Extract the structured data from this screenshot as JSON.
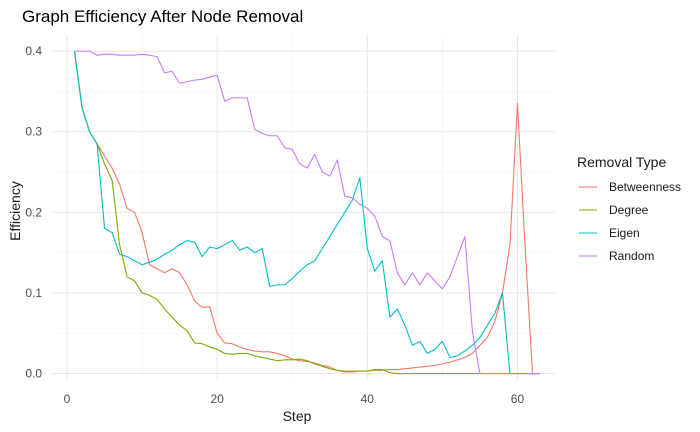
{
  "chart_data": {
    "type": "line",
    "title": "Graph Efficiency After Node Removal",
    "xlabel": "Step",
    "ylabel": "Efficiency",
    "xlim": [
      -2,
      65
    ],
    "ylim": [
      -0.008,
      0.42
    ],
    "x_ticks": [
      0,
      20,
      40,
      60
    ],
    "y_ticks": [
      0.0,
      0.1,
      0.2,
      0.3,
      0.4
    ],
    "y_tick_labels": [
      "0.0",
      "0.1",
      "0.2",
      "0.3",
      "0.4"
    ],
    "grid": true,
    "legend": {
      "title": "Removal Type",
      "position": "right"
    },
    "series": [
      {
        "name": "Betweenness",
        "color": "#F8766D",
        "x": [
          1,
          2,
          3,
          4,
          5,
          6,
          7,
          8,
          9,
          10,
          11,
          12,
          13,
          14,
          15,
          16,
          17,
          18,
          19,
          20,
          21,
          22,
          23,
          24,
          25,
          26,
          27,
          28,
          29,
          30,
          31,
          32,
          33,
          34,
          35,
          36,
          37,
          38,
          39,
          40,
          41,
          42,
          43,
          44,
          45,
          46,
          47,
          48,
          49,
          50,
          51,
          52,
          53,
          54,
          55,
          56,
          57,
          58,
          59,
          60,
          61,
          62,
          63
        ],
        "y": [
          0.4,
          0.33,
          0.3,
          0.285,
          0.27,
          0.255,
          0.235,
          0.205,
          0.2,
          0.175,
          0.135,
          0.13,
          0.125,
          0.13,
          0.125,
          0.11,
          0.09,
          0.082,
          0.083,
          0.05,
          0.038,
          0.037,
          0.033,
          0.03,
          0.028,
          0.027,
          0.027,
          0.025,
          0.022,
          0.018,
          0.016,
          0.015,
          0.013,
          0.01,
          0.008,
          0.004,
          0.002,
          0.002,
          0.003,
          0.003,
          0.004,
          0.004,
          0.005,
          0.005,
          0.006,
          0.007,
          0.008,
          0.009,
          0.01,
          0.012,
          0.014,
          0.017,
          0.02,
          0.025,
          0.035,
          0.045,
          0.065,
          0.1,
          0.16,
          0.335,
          0.16,
          0.0,
          0.0
        ]
      },
      {
        "name": "Degree",
        "color": "#7CAE00",
        "x": [
          1,
          2,
          3,
          4,
          5,
          6,
          7,
          8,
          9,
          10,
          11,
          12,
          13,
          14,
          15,
          16,
          17,
          18,
          19,
          20,
          21,
          22,
          23,
          24,
          25,
          26,
          27,
          28,
          29,
          30,
          31,
          32,
          33,
          34,
          35,
          36,
          37,
          38,
          39,
          40,
          41,
          42,
          43,
          44,
          45,
          46,
          47,
          48,
          49,
          50,
          51,
          52,
          53,
          54,
          55,
          56,
          57,
          58,
          59,
          60,
          61,
          62,
          63
        ],
        "y": [
          0.4,
          0.33,
          0.3,
          0.285,
          0.26,
          0.24,
          0.16,
          0.12,
          0.115,
          0.1,
          0.097,
          0.092,
          0.08,
          0.07,
          0.06,
          0.053,
          0.038,
          0.037,
          0.033,
          0.03,
          0.025,
          0.024,
          0.025,
          0.025,
          0.022,
          0.02,
          0.018,
          0.016,
          0.017,
          0.017,
          0.018,
          0.016,
          0.012,
          0.009,
          0.006,
          0.004,
          0.003,
          0.003,
          0.003,
          0.003,
          0.005,
          0.005,
          0.001,
          0.0,
          0.0,
          0.0,
          0.0,
          0.0,
          0.0,
          0.0,
          0.0,
          0.0,
          0.0,
          0.0,
          0.0,
          0.0,
          0.0,
          0.0,
          0.0,
          0.0,
          0.0,
          0.0,
          0.0
        ]
      },
      {
        "name": "Eigen",
        "color": "#00BFC4",
        "x": [
          1,
          2,
          3,
          4,
          5,
          6,
          7,
          8,
          9,
          10,
          11,
          12,
          13,
          14,
          15,
          16,
          17,
          18,
          19,
          20,
          21,
          22,
          23,
          24,
          25,
          26,
          27,
          28,
          29,
          30,
          31,
          32,
          33,
          34,
          35,
          36,
          37,
          38,
          39,
          40,
          41,
          42,
          43,
          44,
          45,
          46,
          47,
          48,
          49,
          50,
          51,
          52,
          53,
          54,
          55,
          56,
          57,
          58,
          59,
          60,
          61,
          62,
          63
        ],
        "y": [
          0.4,
          0.33,
          0.3,
          0.285,
          0.18,
          0.175,
          0.148,
          0.145,
          0.14,
          0.135,
          0.138,
          0.142,
          0.148,
          0.153,
          0.16,
          0.165,
          0.163,
          0.145,
          0.157,
          0.155,
          0.16,
          0.165,
          0.153,
          0.157,
          0.15,
          0.155,
          0.108,
          0.11,
          0.11,
          0.118,
          0.127,
          0.135,
          0.14,
          0.155,
          0.17,
          0.185,
          0.2,
          0.215,
          0.243,
          0.155,
          0.127,
          0.14,
          0.07,
          0.08,
          0.06,
          0.035,
          0.04,
          0.025,
          0.03,
          0.04,
          0.02,
          0.022,
          0.028,
          0.035,
          0.045,
          0.06,
          0.075,
          0.1,
          0.0,
          0.0,
          0.0,
          0.0,
          0.0
        ]
      },
      {
        "name": "Random",
        "color": "#C77CFF",
        "x": [
          1,
          2,
          3,
          4,
          5,
          6,
          7,
          8,
          9,
          10,
          11,
          12,
          13,
          14,
          15,
          16,
          17,
          18,
          19,
          20,
          21,
          22,
          23,
          24,
          25,
          26,
          27,
          28,
          29,
          30,
          31,
          32,
          33,
          34,
          35,
          36,
          37,
          38,
          39,
          40,
          41,
          42,
          43,
          44,
          45,
          46,
          47,
          48,
          49,
          50,
          51,
          52,
          53,
          54,
          55,
          56,
          57,
          58,
          59,
          60,
          61,
          62,
          63
        ],
        "y": [
          0.4,
          0.4,
          0.4,
          0.395,
          0.396,
          0.396,
          0.395,
          0.395,
          0.395,
          0.396,
          0.395,
          0.393,
          0.373,
          0.375,
          0.36,
          0.362,
          0.364,
          0.365,
          0.368,
          0.37,
          0.338,
          0.342,
          0.342,
          0.342,
          0.303,
          0.298,
          0.295,
          0.295,
          0.28,
          0.278,
          0.26,
          0.255,
          0.272,
          0.25,
          0.245,
          0.265,
          0.22,
          0.218,
          0.21,
          0.205,
          0.195,
          0.17,
          0.165,
          0.125,
          0.11,
          0.125,
          0.11,
          0.125,
          0.115,
          0.105,
          0.12,
          0.145,
          0.17,
          0.052,
          0.0,
          0.0,
          0.0,
          0.0,
          0.0,
          0.0,
          0.0,
          0.0,
          0.0
        ]
      }
    ]
  }
}
